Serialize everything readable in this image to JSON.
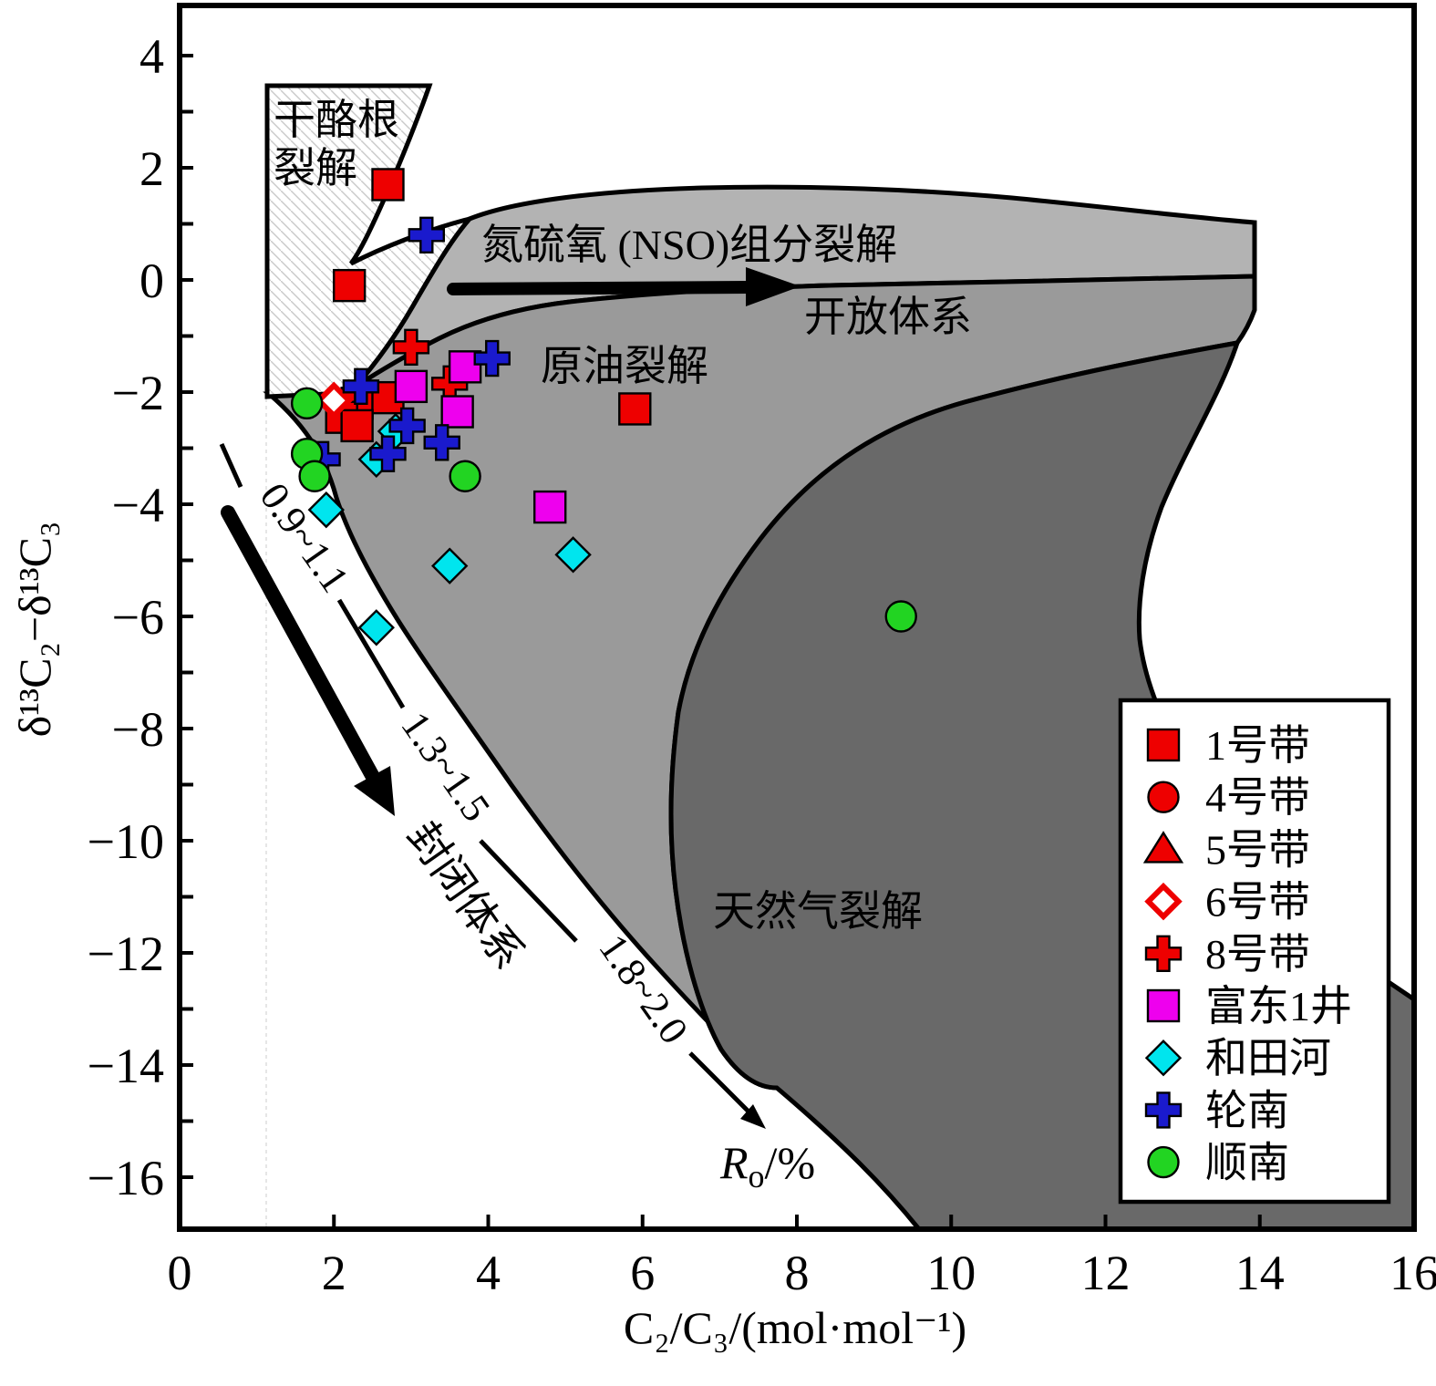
{
  "colors": {
    "light_gray": "#b3b3b3",
    "medium_gray": "#9a9a9a",
    "dark_gray": "#696969",
    "hatch_line": "#c9c9c9",
    "red": "#ee0000",
    "magenta": "#ee00ee",
    "cyan": "#00e5ee",
    "blue": "#1a1acd",
    "green": "#22d422"
  },
  "labels": {
    "kerogen_line1": "干酪根",
    "kerogen_line2": "裂解",
    "nso": "氮硫氧 (NSO)组分裂解",
    "open_system": "开放体系",
    "oil_cracking": "原油裂解",
    "gas_cracking": "天然气裂解",
    "closed_system": "封闭体系",
    "ro_1": "0.9~1.1",
    "ro_2": "1.3~1.5",
    "ro_3": "1.8~2.0",
    "ro_axis_r": "R",
    "ro_axis_sub": "o",
    "ro_axis_rest": "/%"
  },
  "chart_data": {
    "type": "scatter",
    "title": "",
    "xlabel": "C₂/C₃/(mol·mol⁻¹)",
    "ylabel": "δ¹³C₂−δ¹³C₃",
    "xlim": [
      0,
      16
    ],
    "ylim": [
      -16.9,
      4.9
    ],
    "xticks": [
      0,
      2,
      4,
      6,
      8,
      10,
      12,
      14,
      16
    ],
    "xtick_labels": [
      "0",
      "2",
      "4",
      "6",
      "8",
      "10",
      "12",
      "14",
      "16"
    ],
    "yticks_labeled": [
      4,
      2,
      0,
      -2,
      -4,
      -6,
      -8,
      -10,
      -12,
      -14,
      -16
    ],
    "ytick_labels": [
      "4",
      "2",
      "0",
      "−2",
      "−4",
      "−6",
      "−8",
      "−10",
      "−12",
      "−14",
      "−16"
    ],
    "ytick_minor_step": 1,
    "grid": false,
    "legend_position": "lower right",
    "regions": [
      {
        "name": "kerogen-cracking",
        "label": "干酪根裂解",
        "style": "white with diagonal hatching"
      },
      {
        "name": "nso-cracking-open-system",
        "label": "氮硫氧 (NSO)组分裂解 / 开放体系",
        "style": "light gray"
      },
      {
        "name": "oil-cracking",
        "label": "原油裂解",
        "style": "medium gray"
      },
      {
        "name": "gas-cracking",
        "label": "天然气裂解",
        "style": "dark gray"
      },
      {
        "name": "closed-system-trend",
        "label": "封闭体系",
        "ro_values": [
          "0.9~1.1",
          "1.3~1.5",
          "1.8~2.0"
        ],
        "ro_axis": "Ro/%"
      }
    ],
    "series": [
      {
        "name": "1号带",
        "marker": "square",
        "color": "#ee0000",
        "points": [
          [
            2.7,
            1.7
          ],
          [
            2.2,
            -0.1
          ],
          [
            2.3,
            -2.2
          ],
          [
            2.7,
            -2.1
          ],
          [
            2.1,
            -2.45
          ],
          [
            2.3,
            -2.6
          ],
          [
            5.9,
            -2.3
          ]
        ]
      },
      {
        "name": "4号带",
        "marker": "circle",
        "color": "#ee0000",
        "points": []
      },
      {
        "name": "5号带",
        "marker": "triangle",
        "color": "#ee0000",
        "points": []
      },
      {
        "name": "6号带",
        "marker": "open-diamond",
        "color": "#ee0000",
        "points": [
          [
            2.0,
            -2.15
          ]
        ]
      },
      {
        "name": "8号带",
        "marker": "plus",
        "color": "#ee0000",
        "points": [
          [
            3.0,
            -1.2
          ],
          [
            3.5,
            -1.85
          ]
        ]
      },
      {
        "name": "富东1井",
        "marker": "square",
        "color": "#ee00ee",
        "points": [
          [
            3.7,
            -1.55
          ],
          [
            3.0,
            -1.9
          ],
          [
            3.6,
            -2.35
          ],
          [
            4.8,
            -4.05
          ]
        ]
      },
      {
        "name": "和田河",
        "marker": "diamond",
        "color": "#00e5ee",
        "points": [
          [
            2.8,
            -2.7
          ],
          [
            2.55,
            -3.2
          ],
          [
            1.9,
            -4.1
          ],
          [
            3.5,
            -5.1
          ],
          [
            5.1,
            -4.9
          ],
          [
            2.55,
            -6.2
          ]
        ]
      },
      {
        "name": "轮南",
        "marker": "plus",
        "color": "#1a1acd",
        "points": [
          [
            3.2,
            0.8
          ],
          [
            4.05,
            -1.4
          ],
          [
            2.35,
            -1.9
          ],
          [
            2.95,
            -2.6
          ],
          [
            3.4,
            -2.9
          ],
          [
            2.7,
            -3.1
          ],
          [
            1.85,
            -3.2
          ]
        ]
      },
      {
        "name": "顺南",
        "marker": "circle",
        "color": "#22d422",
        "points": [
          [
            1.65,
            -2.2
          ],
          [
            1.65,
            -3.1
          ],
          [
            1.75,
            -3.5
          ],
          [
            3.7,
            -3.5
          ],
          [
            9.35,
            -6.0
          ]
        ]
      }
    ]
  }
}
